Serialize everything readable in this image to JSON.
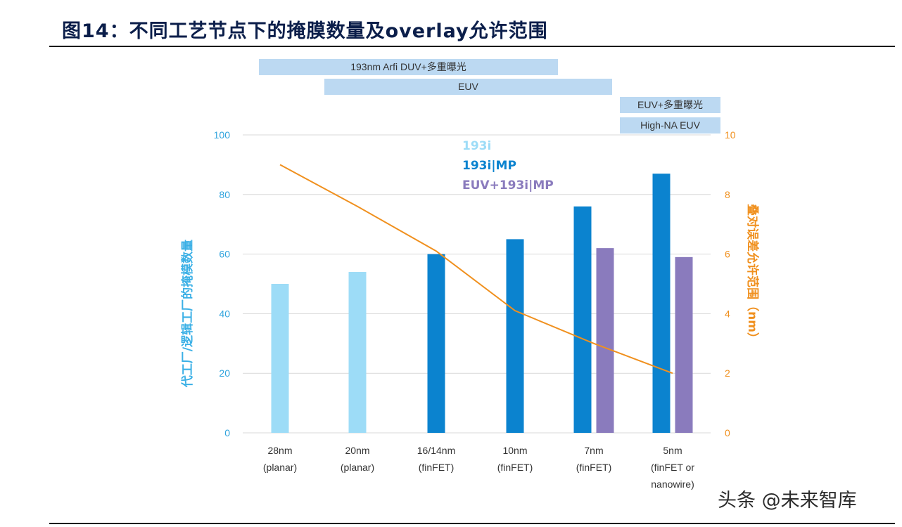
{
  "title": "图14：不同工艺节点下的掩膜数量及overlay允许范围",
  "bands": [
    {
      "label": "193nm Arfi DUV+多重曝光"
    },
    {
      "label": "EUV"
    },
    {
      "label": "EUV+多重曝光"
    },
    {
      "label": "High-NA EUV"
    }
  ],
  "watermark": "头条 @未来智库",
  "chart_data": {
    "type": "bar",
    "categories": [
      [
        "28nm",
        "(planar)"
      ],
      [
        "20nm",
        "(planar)"
      ],
      [
        "16/14nm",
        "(finFET)"
      ],
      [
        "10nm",
        "(finFET)"
      ],
      [
        "7nm",
        "(finFET)"
      ],
      [
        "5nm",
        "(finFET or",
        "nanowire)"
      ]
    ],
    "legend": [
      {
        "name": "193i",
        "color": "#9ddcf7"
      },
      {
        "name": "193i|MP",
        "color": "#0b83cf"
      },
      {
        "name": "EUV+193i|MP",
        "color": "#8a7bbd"
      }
    ],
    "bars": [
      {
        "category_index": 0,
        "series": "193i",
        "value": 50
      },
      {
        "category_index": 1,
        "series": "193i",
        "value": 54
      },
      {
        "category_index": 2,
        "series": "193i|MP",
        "value": 60
      },
      {
        "category_index": 3,
        "series": "193i|MP",
        "value": 65
      },
      {
        "category_index": 4,
        "series": "193i|MP",
        "value": 76
      },
      {
        "category_index": 4,
        "series": "EUV+193i|MP",
        "value": 62
      },
      {
        "category_index": 5,
        "series": "193i|MP",
        "value": 87
      },
      {
        "category_index": 5,
        "series": "EUV+193i|MP",
        "value": 59
      }
    ],
    "line": {
      "color": "#f0901e",
      "values": [
        9.0,
        7.6,
        6.1,
        4.1,
        3.0,
        2.0
      ]
    },
    "ylabel_left": "代工厂/逻辑工厂的掩模数量",
    "ylabel_right": "叠对误差允许范围（nm）",
    "ylim_left": [
      0,
      100
    ],
    "yticks_left": [
      0,
      20,
      40,
      60,
      80,
      100
    ],
    "ylim_right": [
      0,
      10
    ],
    "yticks_right": [
      0,
      2,
      4,
      6,
      8,
      10
    ],
    "grid": "horizontal"
  }
}
